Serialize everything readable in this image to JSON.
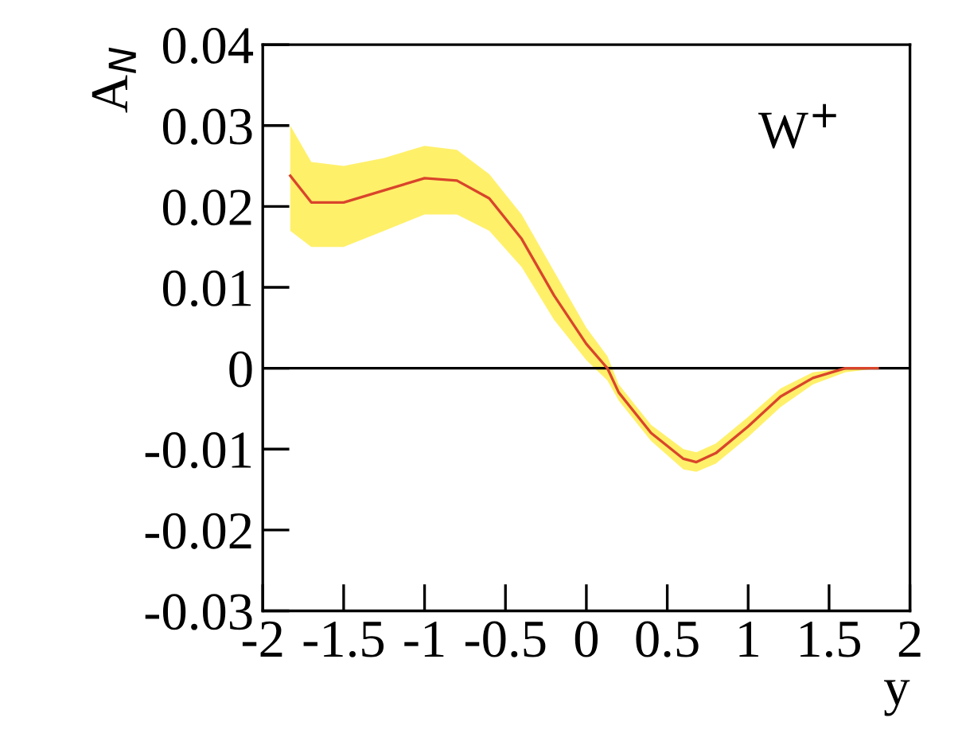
{
  "chart_data": {
    "type": "line",
    "xlabel": "y",
    "ylabel": "A$_{N}$",
    "xlim": [
      -2,
      2
    ],
    "ylim": [
      -0.03,
      0.04
    ],
    "xticks": [
      -2,
      -1.5,
      -1,
      -0.5,
      0,
      0.5,
      1,
      1.5,
      2
    ],
    "yticks": [
      -0.03,
      -0.02,
      -0.01,
      0,
      0.01,
      0.02,
      0.03,
      0.04
    ],
    "grid": false,
    "line_style": "solid",
    "annotations": [
      "W$^{+}$"
    ],
    "ref_lines": [
      {
        "axis": "y",
        "value": 0,
        "color": "#000000"
      }
    ],
    "series": [
      {
        "color": "#d9452b",
        "x": [
          -1.83,
          -1.7,
          -1.5,
          -1.25,
          -1.0,
          -0.8,
          -0.6,
          -0.4,
          -0.2,
          0.0,
          0.13,
          0.2,
          0.4,
          0.6,
          0.68,
          0.8,
          1.0,
          1.2,
          1.4,
          1.6,
          1.8
        ],
        "values": [
          0.0238,
          0.0205,
          0.0205,
          0.022,
          0.0235,
          0.0232,
          0.021,
          0.016,
          0.009,
          0.003,
          0.0,
          -0.003,
          -0.008,
          -0.0112,
          -0.0116,
          -0.0105,
          -0.0072,
          -0.0035,
          -0.0012,
          0.0,
          0.0
        ],
        "lower": [
          0.017,
          0.015,
          0.015,
          0.017,
          0.019,
          0.019,
          0.017,
          0.0125,
          0.006,
          0.001,
          -0.0015,
          -0.004,
          -0.009,
          -0.0125,
          -0.0128,
          -0.0118,
          -0.0085,
          -0.0048,
          -0.002,
          -0.0005,
          0.0
        ],
        "upper": [
          0.03,
          0.0255,
          0.025,
          0.026,
          0.0275,
          0.027,
          0.024,
          0.019,
          0.012,
          0.005,
          0.0015,
          -0.002,
          -0.007,
          -0.01,
          -0.0104,
          -0.0093,
          -0.006,
          -0.0025,
          -0.0005,
          0.0,
          0.0
        ]
      }
    ]
  }
}
